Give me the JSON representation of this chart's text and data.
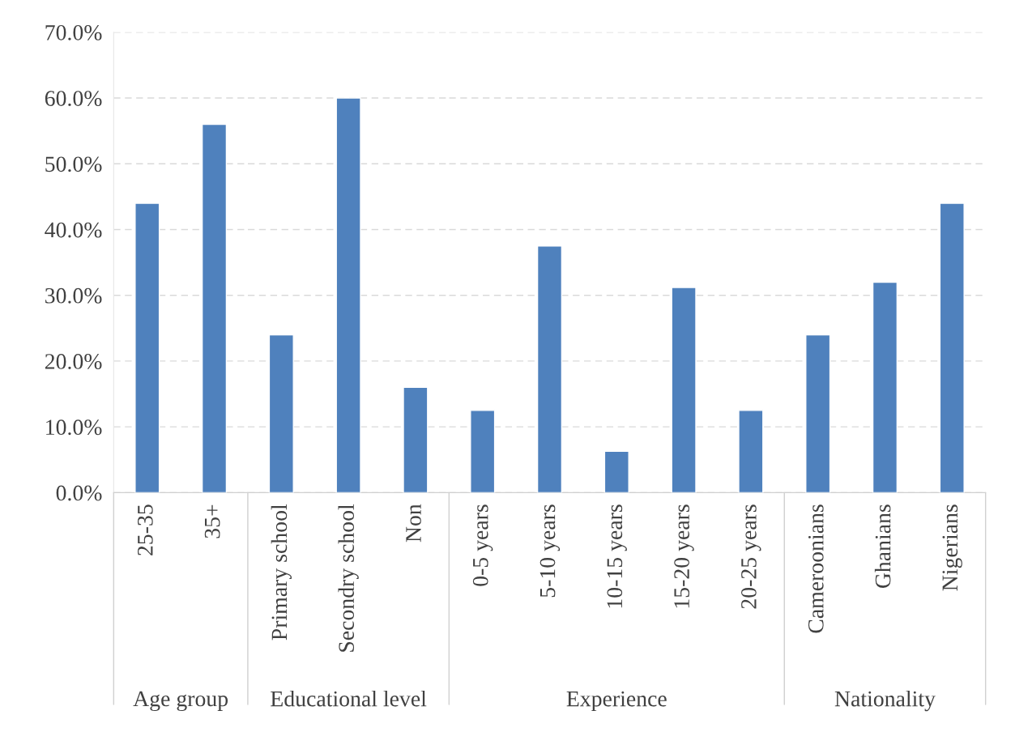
{
  "chart_data": [
    {
      "type": "bar",
      "xlabel": "Age group",
      "categories": [
        "25-35",
        "35+"
      ],
      "values": [
        44,
        56
      ],
      "color": "#4f81bd",
      "ylim": [
        0,
        70
      ],
      "yticks": [
        {
          "value": 0,
          "label": "0.0%"
        },
        {
          "value": 10,
          "label": "10.0%"
        },
        {
          "value": 20,
          "label": "20.0%"
        },
        {
          "value": 30,
          "label": "30.0%"
        },
        {
          "value": 40,
          "label": "40.0%"
        },
        {
          "value": 50,
          "label": "50.0%"
        },
        {
          "value": 60,
          "label": "60.0%"
        },
        {
          "value": 70,
          "label": "70.0%"
        }
      ],
      "grid": "y"
    },
    {
      "type": "bar",
      "xlabel": "Educational level",
      "categories": [
        "Primary school",
        "Secondry school",
        "Non"
      ],
      "values": [
        24,
        60,
        16
      ],
      "color": "#4f81bd",
      "ylim": [
        0,
        70
      ],
      "grid": "y",
      "tick_labels": "x"
    },
    {
      "type": "bar",
      "xlabel": "Experience",
      "categories": [
        "0-5 years",
        "5-10 years",
        "10-15 years",
        "15-20 years",
        "20-25 years"
      ],
      "values": [
        12.5,
        37.5,
        6.3,
        31.2,
        12.5
      ],
      "color": "#4f81bd",
      "ylim": [
        0,
        70
      ],
      "grid": "y",
      "tick_labels": "x"
    },
    {
      "type": "bar",
      "xlabel": "Nationality",
      "categories": [
        "Cameroonians",
        "Ghanians",
        "Nigerians"
      ],
      "values": [
        24,
        32,
        44
      ],
      "color": "#4f81bd",
      "ylim": [
        0,
        70
      ],
      "grid": "y",
      "tick_labels": "x"
    }
  ]
}
